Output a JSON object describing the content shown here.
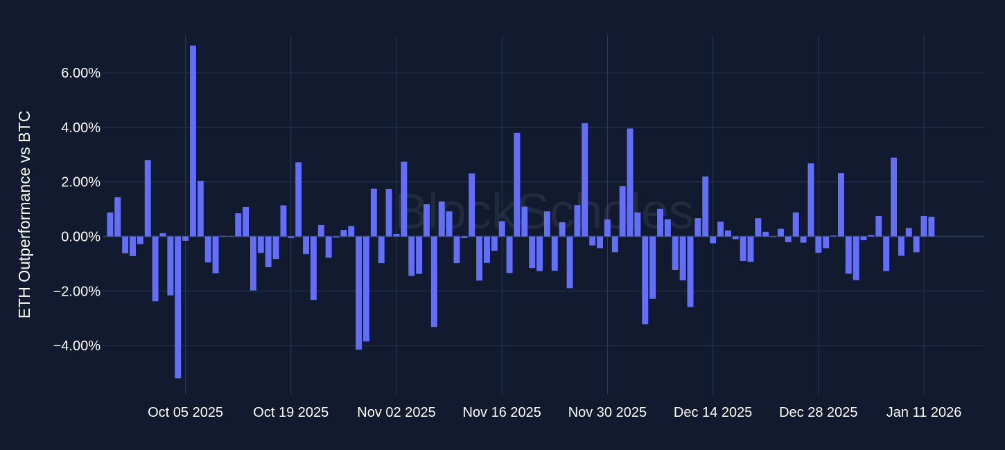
{
  "watermark": "BlockScholes",
  "colors": {
    "background": "#111a2e",
    "bar": "#636efa",
    "grid": "#2a3856"
  },
  "chart_data": {
    "type": "bar",
    "ylabel": "ETH Outperformance vs BTC",
    "xlabel": "",
    "ylim": [
      -5.8,
      7.4
    ],
    "y_ticks": [
      -4,
      -2,
      0,
      2,
      4,
      6
    ],
    "y_tick_labels": [
      "−4.00%",
      "−2.00%",
      "0.00%",
      "2.00%",
      "4.00%",
      "6.00%"
    ],
    "x_tick_dates": [
      "2025-10-05",
      "2025-10-19",
      "2025-11-02",
      "2025-11-16",
      "2025-11-30",
      "2025-12-14",
      "2025-12-28",
      "2026-01-11"
    ],
    "x_tick_labels": [
      "Oct 05 2025",
      "Oct 19 2025",
      "Nov 02 2025",
      "Nov 16 2025",
      "Nov 30 2025",
      "Dec 14 2025",
      "Dec 28 2025",
      "Jan 11 2026"
    ],
    "x_range": [
      "2025-09-24",
      "2026-01-19"
    ],
    "series": [
      {
        "start_date": "2025-09-25",
        "values": [
          0.88,
          1.44,
          -0.62,
          -0.72,
          -0.28,
          2.8,
          -2.38,
          0.12,
          -2.16,
          -5.2,
          -0.16,
          7.0,
          2.04,
          -0.95,
          -1.35,
          0.02,
          0.0,
          0.85,
          1.08,
          -1.98,
          -0.6,
          -1.13,
          -0.83,
          1.14,
          -0.06,
          2.72,
          -0.65,
          -2.33,
          0.42,
          -0.78,
          -0.04,
          0.24,
          0.38,
          -4.15,
          -3.85,
          1.75,
          -0.98,
          1.74,
          0.09,
          2.74,
          -1.45,
          -1.37,
          1.18,
          -3.32,
          1.28,
          0.92,
          -0.98,
          -0.06,
          2.31,
          -1.62,
          -0.97,
          -0.53,
          0.56,
          -1.34,
          3.8,
          1.09,
          -1.16,
          -1.27,
          0.92,
          -1.26,
          0.52,
          -1.9,
          1.15,
          4.15,
          -0.33,
          -0.43,
          0.62,
          -0.58,
          1.84,
          3.96,
          0.88,
          -3.22,
          -2.29,
          1.01,
          0.63,
          -1.23,
          -1.61,
          -2.59,
          0.67,
          2.2,
          -0.25,
          0.54,
          0.22,
          -0.1,
          -0.9,
          -0.93,
          0.67,
          0.17,
          -0.02,
          0.28,
          -0.21,
          0.88,
          -0.23,
          2.68,
          -0.6,
          -0.43,
          0.03,
          2.32,
          -1.37,
          -1.6,
          -0.14,
          0.05,
          0.75,
          -1.27,
          2.89,
          -0.71,
          0.31,
          -0.58,
          0.75,
          0.72
        ]
      }
    ]
  }
}
